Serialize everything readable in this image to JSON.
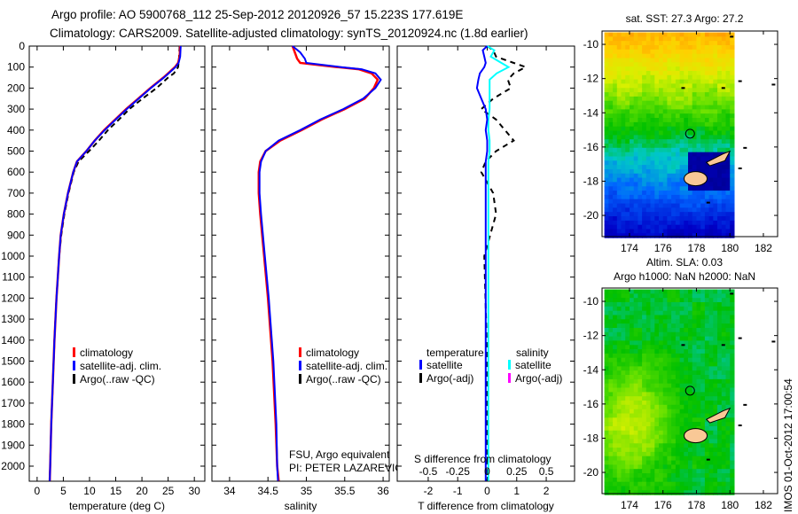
{
  "header": {
    "line1": "Argo profile: AO 5900768_112 25-Sep-2012 20120926_57 15.223S 177.619E",
    "line2": "Climatology: CARS2009. Satellite-adjusted climatology: synTS_20120924.nc (1.8d earlier)"
  },
  "footer": {
    "stamp": "IMOS 01-Oct-2012 17:00:54"
  },
  "colors": {
    "climatology": "#ff0000",
    "satellite": "#0000ff",
    "argo": "#000000",
    "sal_satellite": "#00ffff",
    "sal_argo": "#ff00ff",
    "land": "#f9c896"
  },
  "chart_data": [
    {
      "type": "line",
      "id": "temperature",
      "xlabel": "temperature (deg C)",
      "ylabel": "depth",
      "xlim": [
        -1.5,
        32
      ],
      "ylim": [
        2070,
        0
      ],
      "xticks": [
        0,
        5,
        10,
        15,
        20,
        25,
        30
      ],
      "yticks": [
        0,
        100,
        200,
        300,
        400,
        500,
        600,
        700,
        800,
        900,
        1000,
        1100,
        1200,
        1300,
        1400,
        1500,
        1600,
        1700,
        1800,
        1900,
        2000
      ],
      "legend": [
        "climatology",
        "satellite-adj. clim.",
        "Argo(..raw -QC)"
      ],
      "depth": [
        0,
        50,
        80,
        100,
        130,
        150,
        200,
        250,
        300,
        350,
        400,
        450,
        500,
        550,
        600,
        700,
        800,
        900,
        1000,
        1200,
        1400,
        1600,
        1800,
        2000,
        2070
      ],
      "series": [
        {
          "name": "climatology",
          "values": [
            27.3,
            27.2,
            26.9,
            26.3,
            25.0,
            24.1,
            21.6,
            19.3,
            17.0,
            14.9,
            12.8,
            11.0,
            9.4,
            7.6,
            6.9,
            5.9,
            5.1,
            4.5,
            4.2,
            3.7,
            3.3,
            3.0,
            2.7,
            2.5,
            2.4
          ]
        },
        {
          "name": "satellite-adj. clim.",
          "values": [
            27.4,
            27.3,
            27.0,
            26.4,
            25.1,
            24.2,
            21.7,
            19.4,
            17.1,
            15.0,
            12.9,
            11.0,
            9.4,
            7.6,
            6.9,
            5.9,
            5.1,
            4.5,
            4.2,
            3.7,
            3.3,
            3.0,
            2.7,
            2.5,
            2.4
          ]
        },
        {
          "name": "Argo(..raw -QC)",
          "values": [
            27.2,
            27.1,
            27.0,
            26.9,
            26.1,
            25.0,
            22.8,
            20.1,
            17.6,
            15.6,
            13.5,
            11.8,
            9.9,
            7.9,
            7.0,
            6.0,
            5.2,
            4.6,
            4.2,
            3.7,
            3.3,
            3.0,
            2.7,
            2.5,
            2.4
          ]
        }
      ]
    },
    {
      "type": "line",
      "id": "salinity",
      "xlabel": "salinity",
      "xlim": [
        33.77,
        36.08
      ],
      "ylim": [
        2070,
        0
      ],
      "xticks": [
        34,
        34.5,
        35,
        35.5,
        36
      ],
      "legend": [
        "climatology",
        "satellite-adj. clim.",
        "Argo(..raw -QC)"
      ],
      "annotation": [
        "FSU, Argo equivalent",
        "PI: PETER LAZAREVICH"
      ],
      "depth": [
        0,
        30,
        60,
        80,
        100,
        110,
        130,
        160,
        200,
        250,
        300,
        350,
        400,
        450,
        500,
        550,
        600,
        700,
        800,
        1000,
        1200,
        1500,
        1800,
        2000,
        2070
      ],
      "series": [
        {
          "name": "climatology",
          "values": [
            34.82,
            34.85,
            34.88,
            34.92,
            35.4,
            35.68,
            35.85,
            35.93,
            35.88,
            35.76,
            35.5,
            35.2,
            34.94,
            34.66,
            34.47,
            34.4,
            34.38,
            34.38,
            34.4,
            34.45,
            34.5,
            34.56,
            34.6,
            34.62,
            34.64
          ]
        },
        {
          "name": "satellite-adj. clim.",
          "values": [
            34.82,
            34.92,
            34.98,
            35.0,
            35.45,
            35.72,
            35.9,
            35.97,
            35.9,
            35.74,
            35.48,
            35.18,
            34.92,
            34.64,
            34.47,
            34.41,
            34.39,
            34.39,
            34.41,
            34.46,
            34.51,
            34.57,
            34.61,
            34.62,
            34.63
          ]
        }
      ]
    },
    {
      "type": "line",
      "id": "difference",
      "xlabel": "T difference from climatology",
      "x2label": "S difference from climatology",
      "xlim": [
        -3.05,
        2.96
      ],
      "ylim": [
        2070,
        0
      ],
      "xticks": [
        -2,
        -1,
        0,
        1,
        2
      ],
      "x2ticks": [
        -0.5,
        -0.25,
        0,
        0.25,
        0.5
      ],
      "legend": {
        "temperature_title": "temperature",
        "salinity_title": "salinity",
        "t_satellite": "satellite",
        "t_argo": "Argo(-adj)",
        "s_satellite": "satellite",
        "s_argo": "Argo(-adj)"
      },
      "depth": [
        0,
        20,
        50,
        80,
        100,
        130,
        160,
        200,
        250,
        300,
        350,
        400,
        450,
        500,
        550,
        600,
        700,
        800,
        900,
        1000,
        1500,
        2070
      ],
      "series": [
        {
          "name": "temperature satellite",
          "values": [
            0.0,
            -0.15,
            -0.1,
            -0.05,
            -0.1,
            -0.25,
            -0.3,
            -0.35,
            -0.2,
            -0.05,
            0.0,
            -0.05,
            0.0,
            0.0,
            -0.05,
            -0.05,
            -0.05,
            -0.05,
            -0.05,
            -0.05,
            -0.05,
            -0.05
          ]
        },
        {
          "name": "salinity satellite",
          "values": [
            0.0,
            0.06,
            0.03,
            0.12,
            0.18,
            0.08,
            0.02,
            0.02,
            0.02,
            0.02,
            0.01,
            0.01,
            0.02,
            0.02,
            0.01,
            0.01,
            0.01,
            0.01,
            0.01,
            0.01,
            0.01,
            0.01
          ]
        },
        {
          "name": "temperature Argo(-adj)",
          "values": [
            0.0,
            0.2,
            0.3,
            0.9,
            1.3,
            0.9,
            0.7,
            0.8,
            0.2,
            -0.2,
            0.3,
            0.6,
            0.9,
            0.3,
            -0.05,
            -0.2,
            0.2,
            0.3,
            0.1,
            -0.1,
            0.0,
            0.0
          ]
        }
      ]
    },
    {
      "type": "heatmap",
      "id": "sst-map",
      "title": "sat. SST: 27.3 Argo: 27.2",
      "xlim": [
        172.36,
        182.85
      ],
      "ylim": [
        -21.24,
        -9.22
      ],
      "xticks": [
        174,
        176,
        178,
        180,
        182
      ],
      "yticks": [
        -10,
        -12,
        -14,
        -16,
        -18,
        -20
      ],
      "argo_position": [
        177.619,
        -15.223
      ]
    },
    {
      "type": "heatmap",
      "id": "sla-map",
      "title1": "Altim. SLA: 0.03",
      "title2": "Argo h1000: NaN h2000: NaN",
      "xlim": [
        172.36,
        182.85
      ],
      "ylim": [
        -21.24,
        -9.22
      ],
      "xticks": [
        174,
        176,
        178,
        180,
        182
      ],
      "yticks": [
        -10,
        -12,
        -14,
        -16,
        -18,
        -20
      ],
      "argo_position": [
        177.619,
        -15.223
      ]
    }
  ]
}
